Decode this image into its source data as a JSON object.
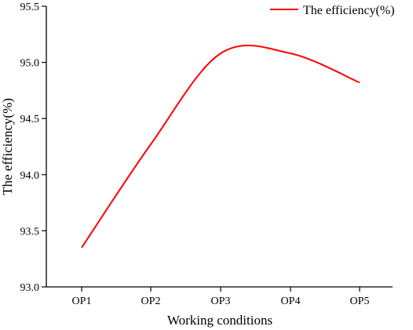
{
  "chart_data": {
    "type": "line",
    "categories": [
      "OP1",
      "OP2",
      "OP3",
      "OP4",
      "OP5"
    ],
    "series": [
      {
        "name": "The efficiency(%)",
        "values": [
          93.35,
          94.27,
          95.08,
          95.08,
          94.82
        ],
        "color": "#ff0000"
      }
    ],
    "smooth": true,
    "xlabel": "Working conditions",
    "ylabel": "The efficiency(%)",
    "ylim": [
      93.0,
      95.5
    ],
    "yticks": [
      93.0,
      93.5,
      94.0,
      94.5,
      95.0,
      95.5
    ],
    "ytick_labels": [
      "93.0",
      "93.5",
      "94.0",
      "94.5",
      "95.0",
      "95.5"
    ],
    "grid": false,
    "legend_position": "top-right"
  }
}
